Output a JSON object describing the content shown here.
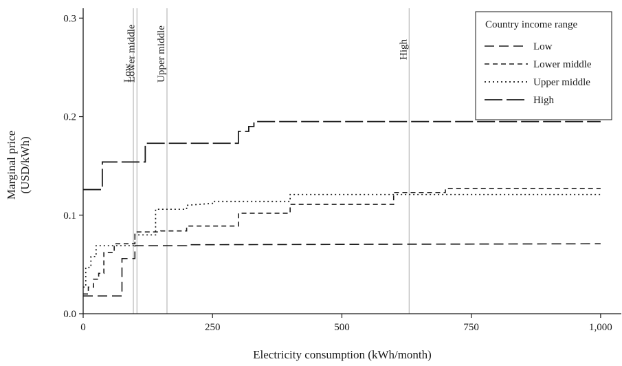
{
  "chart_data": {
    "type": "line",
    "title": "",
    "xlabel": "Electricity consumption (kWh/month)",
    "ylabel_line1": "Marginal price",
    "ylabel_line2": "(USD/kWh)",
    "xlim": [
      0,
      1040
    ],
    "ylim": [
      0,
      0.31
    ],
    "xticks": [
      0,
      250,
      500,
      750,
      1000
    ],
    "xtick_labels": [
      "0",
      "250",
      "500",
      "750",
      "1,000"
    ],
    "yticks": [
      0.0,
      0.1,
      0.2,
      0.3
    ],
    "ytick_labels": [
      "0.0",
      "0.1",
      "0.2",
      "0.3"
    ],
    "grid": false,
    "legend_position": "top-right",
    "legend_title": "Country income range",
    "reference_lines": [
      {
        "label": "Low",
        "x": 97
      },
      {
        "label": "Lower middle",
        "x": 104
      },
      {
        "label": "Upper middle",
        "x": 162
      },
      {
        "label": "High",
        "x": 630
      }
    ],
    "series": [
      {
        "name": "Low",
        "dash": "14,7",
        "width": 1.6,
        "points": [
          [
            0,
            0.018
          ],
          [
            75,
            0.018
          ],
          [
            75,
            0.056
          ],
          [
            100,
            0.056
          ],
          [
            100,
            0.069
          ],
          [
            200,
            0.069
          ],
          [
            200,
            0.07
          ],
          [
            1000,
            0.071
          ]
        ]
      },
      {
        "name": "Lower middle",
        "dash": "7,5",
        "width": 1.6,
        "points": [
          [
            0,
            0.02
          ],
          [
            10,
            0.02
          ],
          [
            10,
            0.027
          ],
          [
            20,
            0.027
          ],
          [
            20,
            0.035
          ],
          [
            30,
            0.035
          ],
          [
            30,
            0.041
          ],
          [
            40,
            0.041
          ],
          [
            40,
            0.062
          ],
          [
            60,
            0.062
          ],
          [
            60,
            0.071
          ],
          [
            100,
            0.071
          ],
          [
            100,
            0.083
          ],
          [
            150,
            0.083
          ],
          [
            150,
            0.084
          ],
          [
            200,
            0.084
          ],
          [
            200,
            0.089
          ],
          [
            300,
            0.089
          ],
          [
            300,
            0.102
          ],
          [
            400,
            0.102
          ],
          [
            400,
            0.111
          ],
          [
            600,
            0.111
          ],
          [
            600,
            0.123
          ],
          [
            700,
            0.123
          ],
          [
            700,
            0.127
          ],
          [
            1000,
            0.127
          ]
        ]
      },
      {
        "name": "Upper middle",
        "dash": "2,4",
        "width": 1.7,
        "points": [
          [
            0,
            0.027
          ],
          [
            5,
            0.027
          ],
          [
            5,
            0.047
          ],
          [
            15,
            0.047
          ],
          [
            15,
            0.058
          ],
          [
            25,
            0.058
          ],
          [
            25,
            0.069
          ],
          [
            100,
            0.069
          ],
          [
            100,
            0.08
          ],
          [
            140,
            0.08
          ],
          [
            140,
            0.106
          ],
          [
            200,
            0.106
          ],
          [
            200,
            0.11
          ],
          [
            250,
            0.112
          ],
          [
            250,
            0.114
          ],
          [
            400,
            0.114
          ],
          [
            400,
            0.121
          ],
          [
            600,
            0.121
          ],
          [
            600,
            0.121
          ],
          [
            1000,
            0.121
          ]
        ]
      },
      {
        "name": "High",
        "dash": "26,6",
        "width": 1.8,
        "points": [
          [
            0,
            0.126
          ],
          [
            37,
            0.126
          ],
          [
            37,
            0.154
          ],
          [
            120,
            0.154
          ],
          [
            120,
            0.173
          ],
          [
            300,
            0.173
          ],
          [
            300,
            0.185
          ],
          [
            320,
            0.185
          ],
          [
            320,
            0.19
          ],
          [
            330,
            0.19
          ],
          [
            330,
            0.195
          ],
          [
            1000,
            0.195
          ]
        ]
      }
    ]
  }
}
